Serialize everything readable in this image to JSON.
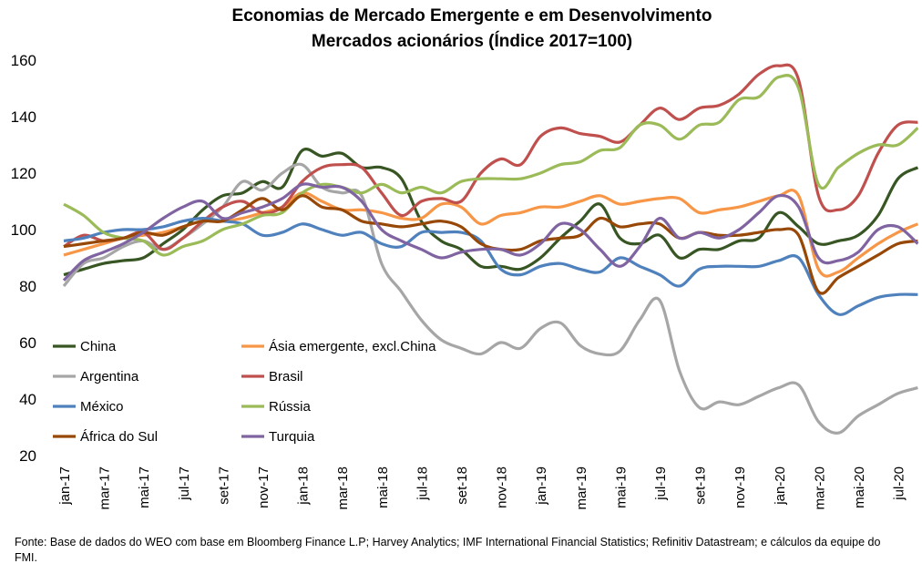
{
  "chart_data": {
    "type": "line",
    "title": "Economias de Mercado Emergente e em Desenvolvimento",
    "subtitle": "Mercados acionários (Índice 2017=100)",
    "source": "Fonte: Base de dados do WEO com base em Bloomberg Finance L.P; Harvey Analytics; IMF International Financial Statistics; Refinitiv Datastream; e cálculos da equipe do FMI.",
    "categories": [
      "jan-17",
      null,
      "mar-17",
      null,
      "mai-17",
      null,
      "jul-17",
      null,
      "set-17",
      null,
      "nov-17",
      null,
      "jan-18",
      null,
      "mar-18",
      null,
      "mai-18",
      null,
      "jul-18",
      null,
      "set-18",
      null,
      "nov-18",
      null,
      "jan-19",
      null,
      "mar-19",
      null,
      "mai-19",
      null,
      "jul-19",
      null,
      "set-19",
      null,
      "nov-19",
      null,
      "jan-20",
      null,
      "mar-20",
      null,
      "mai-20",
      null,
      "jul-20",
      null
    ],
    "ylim": [
      20,
      160
    ],
    "yticks": [
      20,
      40,
      60,
      80,
      100,
      120,
      140,
      160
    ],
    "grid": false,
    "series": [
      {
        "name": "China",
        "color": "#375623",
        "values": [
          84,
          86,
          88,
          89,
          90,
          95,
          100,
          107,
          112,
          113,
          117,
          115,
          128,
          126,
          127,
          122,
          122,
          118,
          103,
          96,
          93,
          87,
          87,
          86,
          90,
          97,
          103,
          109,
          97,
          95,
          98,
          90,
          93,
          93,
          96,
          97,
          106,
          101,
          95,
          96,
          98,
          105,
          118,
          122
        ]
      },
      {
        "name": "Ásia emergente, excl.China",
        "color": "#f79646",
        "values": [
          91,
          93,
          95,
          97,
          98,
          99,
          101,
          103,
          103,
          104,
          106,
          108,
          113,
          110,
          107,
          107,
          106,
          104,
          104,
          109,
          108,
          102,
          105,
          106,
          108,
          108,
          110,
          112,
          109,
          110,
          111,
          111,
          106,
          107,
          108,
          110,
          112,
          112,
          86,
          85,
          90,
          95,
          99,
          102
        ]
      },
      {
        "name": "Argentina",
        "color": "#a6a6a6",
        "values": [
          80,
          88,
          90,
          94,
          96,
          93,
          97,
          102,
          108,
          117,
          114,
          120,
          123,
          115,
          113,
          112,
          88,
          78,
          68,
          61,
          58,
          56,
          60,
          58,
          65,
          67,
          59,
          56,
          57,
          68,
          75,
          50,
          37,
          39,
          38,
          41,
          44,
          45,
          32,
          28,
          34,
          38,
          42,
          44
        ]
      },
      {
        "name": "Brasil",
        "color": "#c0504d",
        "values": [
          94,
          98,
          96,
          97,
          99,
          93,
          97,
          103,
          108,
          110,
          106,
          108,
          117,
          122,
          123,
          122,
          113,
          105,
          110,
          111,
          110,
          120,
          125,
          123,
          133,
          136,
          134,
          133,
          131,
          137,
          143,
          139,
          143,
          144,
          148,
          155,
          158,
          153,
          112,
          107,
          112,
          127,
          137,
          138
        ]
      },
      {
        "name": "México",
        "color": "#4f81bd",
        "values": [
          96,
          97,
          99,
          100,
          100,
          101,
          103,
          104,
          103,
          102,
          98,
          99,
          102,
          100,
          98,
          99,
          95,
          94,
          99,
          99,
          99,
          96,
          86,
          84,
          87,
          88,
          86,
          85,
          90,
          87,
          84,
          80,
          86,
          87,
          87,
          87,
          89,
          90,
          77,
          70,
          73,
          76,
          77,
          77
        ]
      },
      {
        "name": "Rússia",
        "color": "#9bbb59",
        "values": [
          109,
          105,
          99,
          97,
          96,
          91,
          94,
          96,
          100,
          102,
          105,
          106,
          113,
          116,
          115,
          113,
          116,
          113,
          115,
          113,
          117,
          118,
          118,
          118,
          120,
          123,
          124,
          128,
          129,
          137,
          137,
          132,
          137,
          138,
          146,
          147,
          154,
          150,
          116,
          122,
          127,
          130,
          130,
          136
        ]
      },
      {
        "name": "África do Sul",
        "color": "#974706",
        "values": [
          94,
          95,
          96,
          97,
          99,
          98,
          101,
          103,
          103,
          107,
          111,
          107,
          112,
          108,
          107,
          103,
          102,
          101,
          102,
          103,
          101,
          95,
          93,
          93,
          96,
          97,
          98,
          104,
          101,
          102,
          102,
          97,
          99,
          98,
          98,
          99,
          100,
          98,
          78,
          83,
          87,
          91,
          95,
          96
        ]
      },
      {
        "name": "Turquia",
        "color": "#8064a2",
        "values": [
          82,
          89,
          92,
          95,
          99,
          104,
          108,
          110,
          104,
          106,
          108,
          111,
          116,
          115,
          115,
          110,
          100,
          96,
          93,
          90,
          92,
          93,
          93,
          91,
          95,
          102,
          100,
          93,
          87,
          94,
          104,
          97,
          99,
          97,
          100,
          106,
          112,
          108,
          90,
          89,
          92,
          100,
          101,
          95
        ]
      }
    ]
  }
}
